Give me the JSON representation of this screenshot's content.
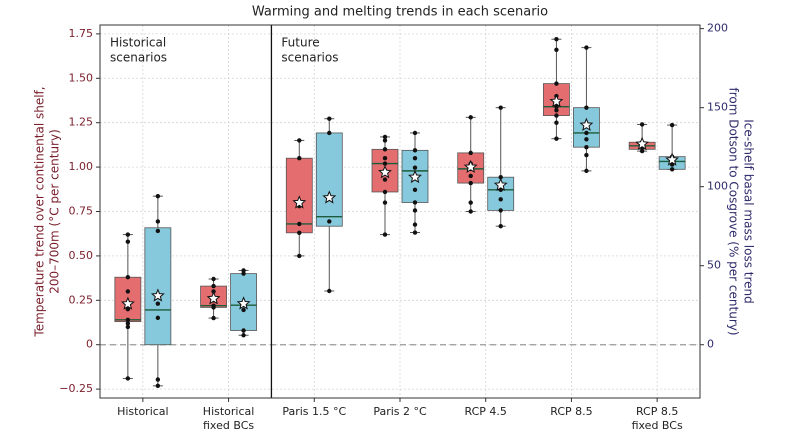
{
  "chart_data": {
    "type": "box",
    "title": "Warming and melting trends in each scenario",
    "y_label": [
      "Temperature trend over continental shelf,",
      "200–700m (°C per century)"
    ],
    "y2_label": [
      "Ice-shelf basal mass loss trend",
      "from Dotson to Cosgrove (% per century)"
    ],
    "annotations": [
      [
        "Historical",
        "scenarios"
      ],
      [
        "Future",
        "scenarios"
      ]
    ],
    "categories": [
      [
        "Historical"
      ],
      [
        "Historical",
        "fixed BCs"
      ],
      [
        "Paris 1.5 °C"
      ],
      [
        "Paris 2 °C"
      ],
      [
        "RCP 4.5"
      ],
      [
        "RCP 8.5"
      ],
      [
        "RCP 8.5",
        "fixed BCs"
      ]
    ],
    "ylim": [
      -0.3,
      1.8
    ],
    "yticks": [
      {
        "value": -0.25,
        "label": "−0.25"
      },
      0,
      0.25,
      {
        "value": 0.5,
        "label": "0.50"
      },
      0.75,
      {
        "value": 1.0,
        "label": "1.00"
      },
      1.25,
      {
        "value": 1.5,
        "label": "1.50"
      },
      1.75
    ],
    "y2lim": [
      -33.7,
      202.3
    ],
    "y2ticks": [
      0,
      50,
      100,
      150,
      200
    ],
    "grid": true,
    "series": [
      {
        "color": "#e46d70",
        "axis": "y",
        "boxes": [
          {
            "low": -0.19,
            "q1": 0.13,
            "median": 0.14,
            "q3": 0.38,
            "high": 0.62,
            "mean": 0.23,
            "points": [
              -0.19,
              0.1,
              0.12,
              0.14,
              0.2,
              0.3,
              0.38,
              0.58,
              0.62
            ]
          },
          {
            "low": 0.15,
            "q1": 0.21,
            "median": 0.22,
            "q3": 0.33,
            "high": 0.37,
            "mean": 0.26,
            "points": [
              0.15,
              0.21,
              0.22,
              0.25,
              0.3,
              0.33,
              0.37
            ]
          },
          {
            "low": 0.5,
            "q1": 0.63,
            "median": 0.68,
            "q3": 1.05,
            "high": 1.15,
            "mean": 0.8,
            "points": [
              0.5,
              0.63,
              0.68,
              0.78,
              1.05,
              1.15
            ]
          },
          {
            "low": 0.62,
            "q1": 0.86,
            "median": 1.02,
            "q3": 1.1,
            "high": 1.17,
            "mean": 0.97,
            "points": [
              0.62,
              0.8,
              0.86,
              0.93,
              0.98,
              1.02,
              1.05,
              1.1,
              1.15,
              1.17
            ]
          },
          {
            "low": 0.75,
            "q1": 0.91,
            "median": 0.99,
            "q3": 1.08,
            "high": 1.28,
            "mean": 1.0,
            "points": [
              0.75,
              0.8,
              0.91,
              0.95,
              0.99,
              1.02,
              1.08,
              1.28
            ]
          },
          {
            "low": 1.16,
            "q1": 1.29,
            "median": 1.34,
            "q3": 1.47,
            "high": 1.72,
            "mean": 1.37,
            "points": [
              1.16,
              1.25,
              1.29,
              1.32,
              1.34,
              1.4,
              1.47,
              1.66,
              1.72
            ]
          },
          {
            "low": 1.09,
            "q1": 1.1,
            "median": 1.12,
            "q3": 1.14,
            "high": 1.24,
            "mean": 1.13,
            "points": [
              1.09,
              1.11,
              1.12,
              1.14,
              1.24
            ]
          }
        ]
      },
      {
        "color": "#86c9dc",
        "axis": "y2",
        "boxes": [
          {
            "low": -26,
            "q1": 0,
            "median": 22,
            "q3": 74,
            "high": 94,
            "mean": 31,
            "points": [
              -26,
              -22,
              17,
              26,
              32,
              72,
              78,
              94
            ]
          },
          {
            "low": 6,
            "q1": 9,
            "median": 25,
            "q3": 45,
            "high": 47,
            "mean": 26,
            "points": [
              6,
              9,
              22,
              25,
              45,
              47
            ]
          },
          {
            "low": 34,
            "q1": 75,
            "median": 81,
            "q3": 134,
            "high": 143,
            "mean": 93,
            "points": [
              34,
              78,
              134,
              143
            ]
          },
          {
            "low": 71,
            "q1": 90,
            "median": 110,
            "q3": 123,
            "high": 134,
            "mean": 106,
            "points": [
              71,
              76,
              85,
              90,
              98,
              106,
              112,
              118,
              123,
              134
            ]
          },
          {
            "low": 75,
            "q1": 85,
            "median": 98,
            "q3": 106,
            "high": 150,
            "mean": 101,
            "points": [
              75,
              85,
              92,
              98,
              106,
              150
            ]
          },
          {
            "low": 110,
            "q1": 125,
            "median": 134,
            "q3": 150,
            "high": 188,
            "mean": 139,
            "points": [
              110,
              120,
              125,
              130,
              134,
              140,
              150,
              188
            ]
          },
          {
            "low": 111,
            "q1": 111,
            "median": 116,
            "q3": 119,
            "high": 139,
            "mean": 117,
            "points": [
              111,
              114,
              117,
              119,
              139
            ]
          }
        ]
      }
    ]
  }
}
